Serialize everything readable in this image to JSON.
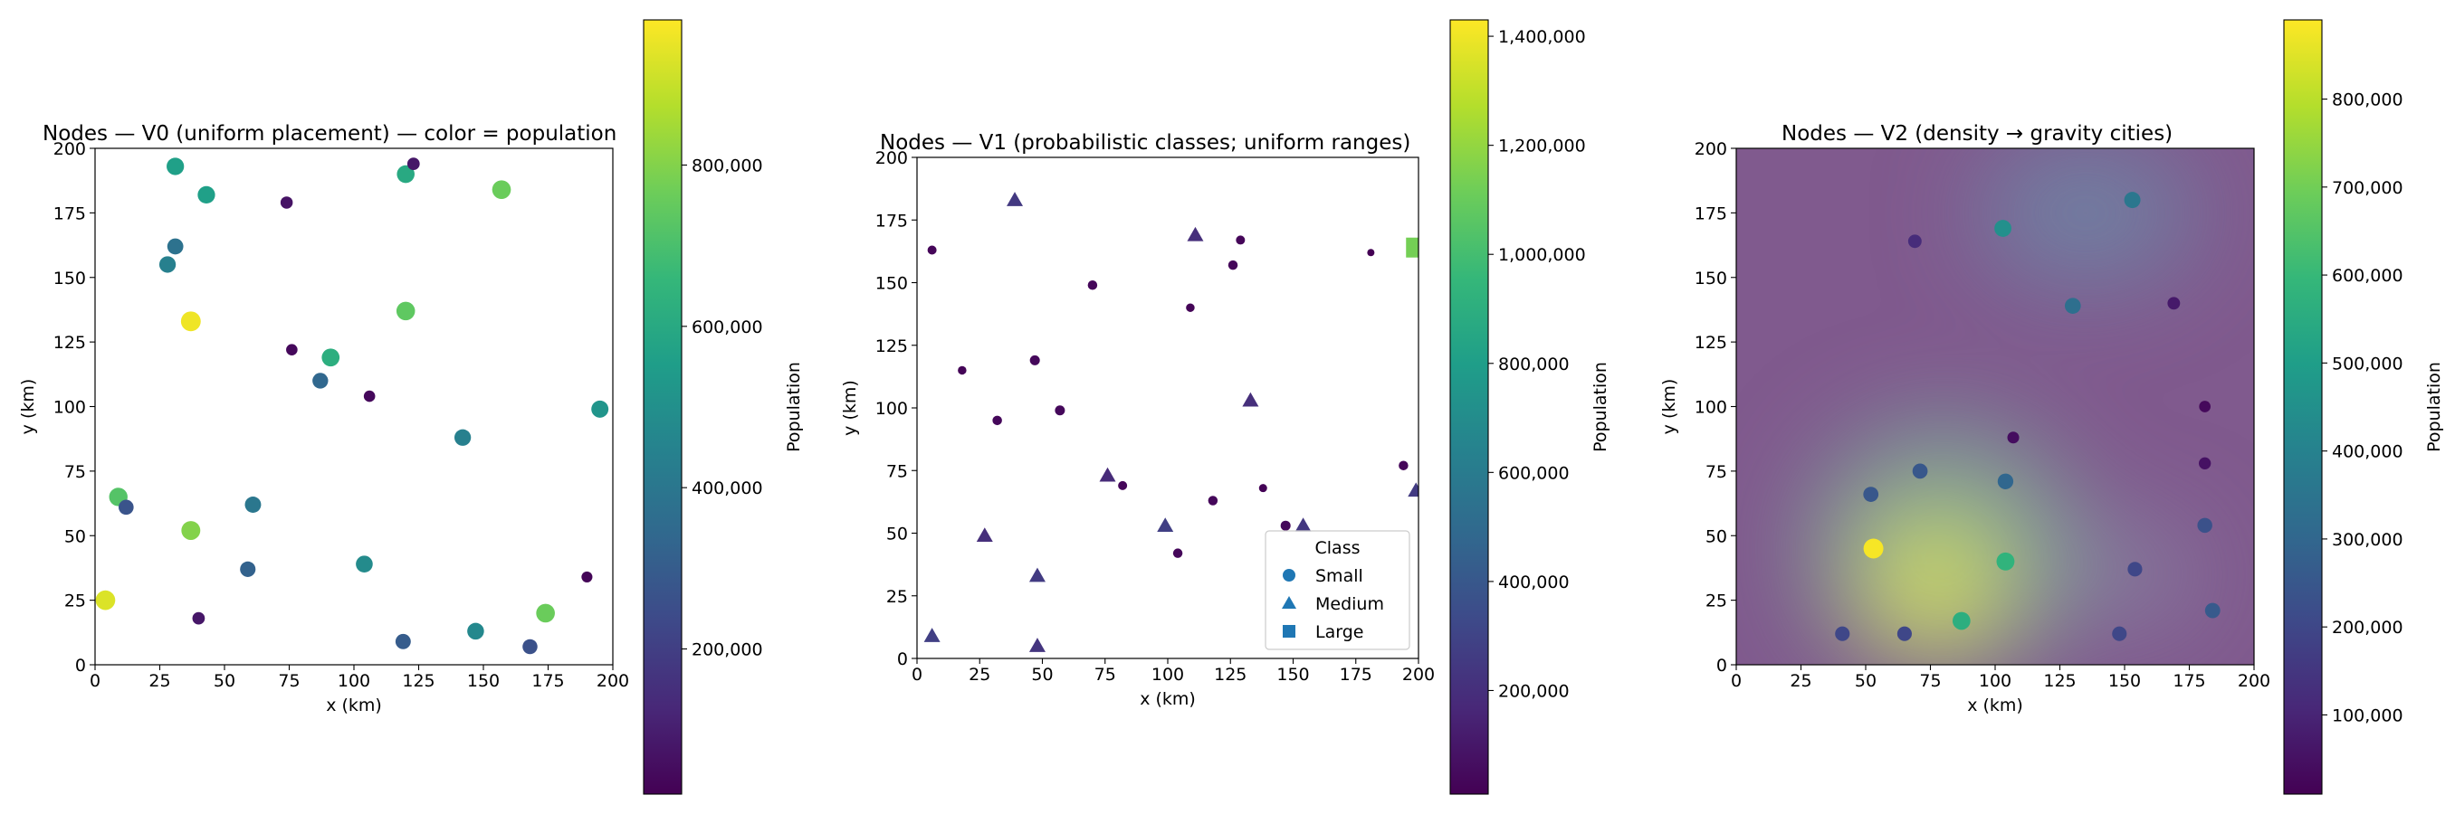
{
  "chart_data": [
    {
      "type": "scatter",
      "title": "Nodes — V0 (uniform placement) — color = population",
      "xlabel": "x (km)",
      "ylabel": "y (km)",
      "xlim": [
        0,
        200
      ],
      "ylim": [
        0,
        200
      ],
      "xticks": [
        "0",
        "25",
        "50",
        "75",
        "100",
        "125",
        "150",
        "175",
        "200"
      ],
      "yticks": [
        "0",
        "25",
        "50",
        "75",
        "100",
        "125",
        "150",
        "175",
        "200"
      ],
      "colorbar": {
        "label": "Population",
        "colormap": "viridis",
        "range": [
          20000,
          980000
        ],
        "ticks": [
          200000,
          400000,
          600000,
          800000
        ],
        "tick_labels": [
          "200,000",
          "400,000",
          "600,000",
          "800,000"
        ]
      },
      "points": [
        {
          "x": 37,
          "y": 133,
          "pop": 960000
        },
        {
          "x": 4,
          "y": 25,
          "pop": 930000
        },
        {
          "x": 37,
          "y": 52,
          "pop": 800000
        },
        {
          "x": 157,
          "y": 184,
          "pop": 760000
        },
        {
          "x": 174,
          "y": 20,
          "pop": 760000
        },
        {
          "x": 120,
          "y": 137,
          "pop": 740000
        },
        {
          "x": 9,
          "y": 65,
          "pop": 720000
        },
        {
          "x": 91,
          "y": 119,
          "pop": 620000
        },
        {
          "x": 120,
          "y": 190,
          "pop": 600000
        },
        {
          "x": 43,
          "y": 182,
          "pop": 560000
        },
        {
          "x": 31,
          "y": 193,
          "pop": 560000
        },
        {
          "x": 195,
          "y": 99,
          "pop": 520000
        },
        {
          "x": 104,
          "y": 39,
          "pop": 480000
        },
        {
          "x": 147,
          "y": 13,
          "pop": 470000
        },
        {
          "x": 142,
          "y": 88,
          "pop": 440000
        },
        {
          "x": 28,
          "y": 155,
          "pop": 440000
        },
        {
          "x": 61,
          "y": 62,
          "pop": 400000
        },
        {
          "x": 31,
          "y": 162,
          "pop": 380000
        },
        {
          "x": 87,
          "y": 110,
          "pop": 340000
        },
        {
          "x": 59,
          "y": 37,
          "pop": 320000
        },
        {
          "x": 119,
          "y": 9,
          "pop": 300000
        },
        {
          "x": 12,
          "y": 61,
          "pop": 270000
        },
        {
          "x": 168,
          "y": 7,
          "pop": 260000
        },
        {
          "x": 123,
          "y": 194,
          "pop": 80000
        },
        {
          "x": 74,
          "y": 179,
          "pop": 70000
        },
        {
          "x": 76,
          "y": 122,
          "pop": 40000
        },
        {
          "x": 106,
          "y": 104,
          "pop": 40000
        },
        {
          "x": 40,
          "y": 18,
          "pop": 80000
        },
        {
          "x": 190,
          "y": 34,
          "pop": 30000
        }
      ]
    },
    {
      "type": "scatter",
      "title": "Nodes — V1 (probabilistic classes; uniform ranges)",
      "xlabel": "x (km)",
      "ylabel": "y (km)",
      "xlim": [
        0,
        200
      ],
      "ylim": [
        0,
        200
      ],
      "xticks": [
        "0",
        "25",
        "50",
        "75",
        "100",
        "125",
        "150",
        "175",
        "200"
      ],
      "yticks": [
        "0",
        "25",
        "50",
        "75",
        "100",
        "125",
        "150",
        "175",
        "200"
      ],
      "legend": {
        "title": "Class",
        "position": "lower-right",
        "entries": [
          {
            "label": "Small",
            "marker": "circle"
          },
          {
            "label": "Medium",
            "marker": "triangle"
          },
          {
            "label": "Large",
            "marker": "square"
          }
        ]
      },
      "colorbar": {
        "label": "Population",
        "colormap": "viridis",
        "range": [
          10000,
          1430000
        ],
        "ticks": [
          200000,
          400000,
          600000,
          800000,
          1000000,
          1200000,
          1400000
        ],
        "tick_labels": [
          "200,000",
          "400,000",
          "600,000",
          "800,000",
          "1,000,000",
          "1,200,000",
          "1,400,000"
        ]
      },
      "points": [
        {
          "x": 6,
          "y": 163,
          "pop": 30000,
          "class": "Small"
        },
        {
          "x": 18,
          "y": 115,
          "pop": 25000,
          "class": "Small"
        },
        {
          "x": 32,
          "y": 95,
          "pop": 35000,
          "class": "Small"
        },
        {
          "x": 47,
          "y": 119,
          "pop": 40000,
          "class": "Small"
        },
        {
          "x": 57,
          "y": 99,
          "pop": 40000,
          "class": "Small"
        },
        {
          "x": 70,
          "y": 149,
          "pop": 35000,
          "class": "Small"
        },
        {
          "x": 82,
          "y": 69,
          "pop": 30000,
          "class": "Small"
        },
        {
          "x": 104,
          "y": 42,
          "pop": 35000,
          "class": "Small"
        },
        {
          "x": 109,
          "y": 140,
          "pop": 25000,
          "class": "Small"
        },
        {
          "x": 118,
          "y": 63,
          "pop": 35000,
          "class": "Small"
        },
        {
          "x": 126,
          "y": 157,
          "pop": 35000,
          "class": "Small"
        },
        {
          "x": 129,
          "y": 167,
          "pop": 30000,
          "class": "Small"
        },
        {
          "x": 138,
          "y": 68,
          "pop": 20000,
          "class": "Small"
        },
        {
          "x": 147,
          "y": 53,
          "pop": 40000,
          "class": "Small"
        },
        {
          "x": 181,
          "y": 162,
          "pop": 10000,
          "class": "Small"
        },
        {
          "x": 194,
          "y": 77,
          "pop": 35000,
          "class": "Small"
        },
        {
          "x": 6,
          "y": 9,
          "pop": 280000,
          "class": "Medium"
        },
        {
          "x": 27,
          "y": 49,
          "pop": 200000,
          "class": "Medium"
        },
        {
          "x": 39,
          "y": 183,
          "pop": 250000,
          "class": "Medium"
        },
        {
          "x": 48,
          "y": 33,
          "pop": 260000,
          "class": "Medium"
        },
        {
          "x": 48,
          "y": 5,
          "pop": 230000,
          "class": "Medium"
        },
        {
          "x": 76,
          "y": 73,
          "pop": 180000,
          "class": "Medium"
        },
        {
          "x": 99,
          "y": 53,
          "pop": 280000,
          "class": "Medium"
        },
        {
          "x": 111,
          "y": 169,
          "pop": 200000,
          "class": "Medium"
        },
        {
          "x": 133,
          "y": 103,
          "pop": 200000,
          "class": "Medium"
        },
        {
          "x": 154,
          "y": 53,
          "pop": 240000,
          "class": "Medium"
        },
        {
          "x": 199,
          "y": 67,
          "pop": 260000,
          "class": "Medium"
        },
        {
          "x": 199,
          "y": 164,
          "pop": 1130000,
          "class": "Large"
        }
      ]
    },
    {
      "type": "scatter",
      "title": "Nodes — V2 (density → gravity cities)",
      "xlabel": "x (km)",
      "ylabel": "y (km)",
      "xlim": [
        0,
        200
      ],
      "ylim": [
        0,
        200
      ],
      "xticks": [
        "0",
        "25",
        "50",
        "75",
        "100",
        "125",
        "150",
        "175",
        "200"
      ],
      "yticks": [
        "0",
        "25",
        "50",
        "75",
        "100",
        "125",
        "150",
        "175",
        "200"
      ],
      "background": "density heatmap (viridis) with a hotspot near x=75, y=30",
      "colorbar": {
        "label": "Population",
        "colormap": "viridis",
        "range": [
          10000,
          890000
        ],
        "ticks": [
          100000,
          200000,
          300000,
          400000,
          500000,
          600000,
          700000,
          800000
        ],
        "tick_labels": [
          "100,000",
          "200,000",
          "300,000",
          "400,000",
          "500,000",
          "600,000",
          "700,000",
          "800,000"
        ]
      },
      "points": [
        {
          "x": 53,
          "y": 45,
          "pop": 880000
        },
        {
          "x": 104,
          "y": 40,
          "pop": 580000
        },
        {
          "x": 87,
          "y": 17,
          "pop": 560000
        },
        {
          "x": 103,
          "y": 169,
          "pop": 450000
        },
        {
          "x": 153,
          "y": 180,
          "pop": 360000
        },
        {
          "x": 130,
          "y": 139,
          "pop": 330000
        },
        {
          "x": 104,
          "y": 71,
          "pop": 300000
        },
        {
          "x": 71,
          "y": 75,
          "pop": 250000
        },
        {
          "x": 52,
          "y": 66,
          "pop": 250000
        },
        {
          "x": 184,
          "y": 21,
          "pop": 260000
        },
        {
          "x": 181,
          "y": 54,
          "pop": 230000
        },
        {
          "x": 154,
          "y": 37,
          "pop": 200000
        },
        {
          "x": 148,
          "y": 12,
          "pop": 200000
        },
        {
          "x": 41,
          "y": 12,
          "pop": 200000
        },
        {
          "x": 65,
          "y": 12,
          "pop": 200000
        },
        {
          "x": 69,
          "y": 164,
          "pop": 120000
        },
        {
          "x": 169,
          "y": 140,
          "pop": 70000
        },
        {
          "x": 107,
          "y": 88,
          "pop": 40000
        },
        {
          "x": 181,
          "y": 100,
          "pop": 30000
        },
        {
          "x": 181,
          "y": 78,
          "pop": 50000
        }
      ]
    }
  ]
}
